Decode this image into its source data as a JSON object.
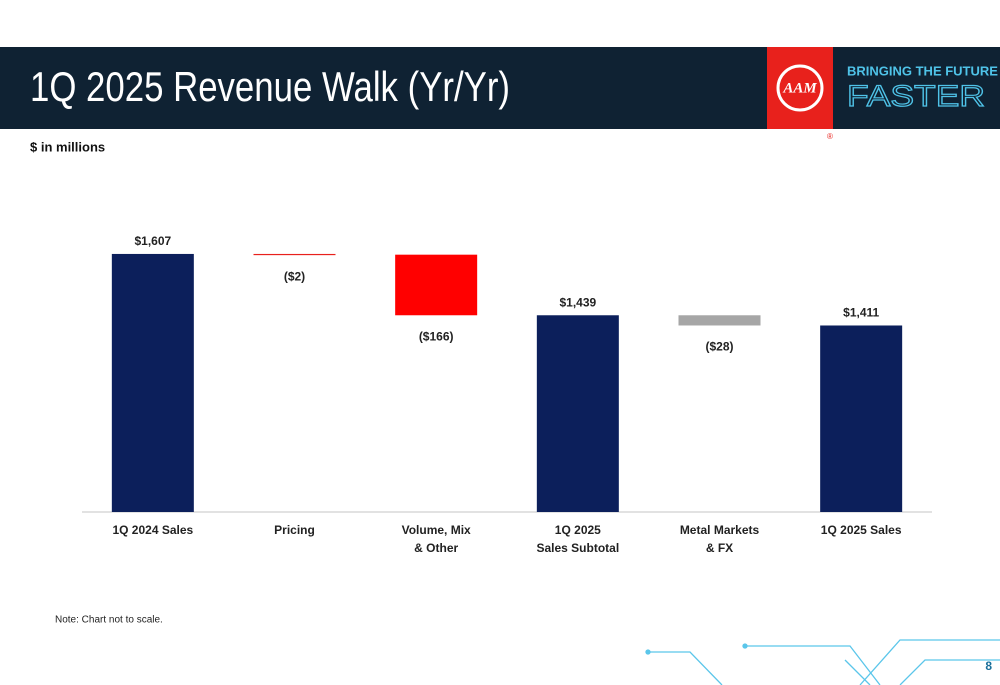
{
  "slide": {
    "title": "1Q 2025 Revenue Walk (Yr/Yr)",
    "subtitle": "$ in millions",
    "note": "Note: Chart not to scale.",
    "page_number": "8",
    "logo": "AAM",
    "tagline_top": "BRINGING THE FUTURE",
    "tagline_bottom": "FASTER"
  },
  "chart_data": {
    "type": "waterfall",
    "categories": [
      "1Q 2024 Sales",
      "Pricing",
      "Volume, Mix\n& Other",
      "1Q 2025\nSales Subtotal",
      "Metal Markets\n& FX",
      "1Q 2025 Sales"
    ],
    "values": [
      1607,
      -2,
      -166,
      1439,
      -28,
      1411
    ],
    "value_labels": [
      "$1,607",
      "($2)",
      "($166)",
      "$1,439",
      "($28)",
      "$1,411"
    ],
    "totals": [
      true,
      false,
      false,
      true,
      false,
      true
    ],
    "colors": [
      "#0c1f5b",
      "#e8211c",
      "#ff0000",
      "#0c1f5b",
      "#a6a6a6",
      "#0c1f5b"
    ],
    "ylim": [
      900,
      1700
    ]
  }
}
